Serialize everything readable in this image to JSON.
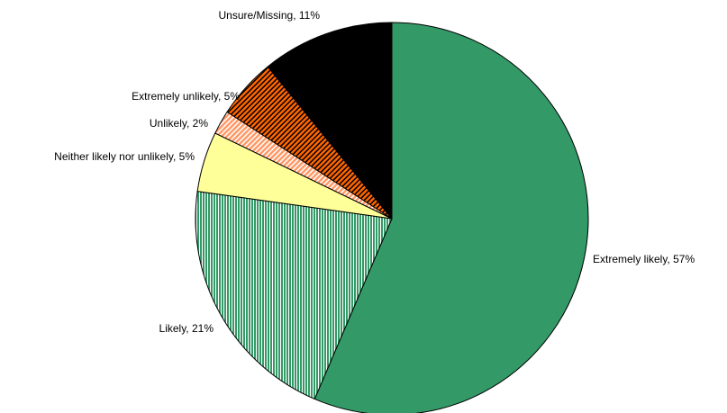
{
  "chart_data": {
    "type": "pie",
    "value_labels": [
      "Extremely likely, 57%",
      "Likely, 21%",
      "Neither likely nor unlikely, 5%",
      "Unlikely, 2%",
      "Extremely unlikely, 5%",
      "Unsure/Missing, 11%"
    ],
    "values": [
      57,
      21,
      5,
      2,
      5,
      11
    ],
    "colors": [
      "#339966",
      "#339966",
      "#ffff99",
      "#ff9966",
      "#ff6600",
      "#000000"
    ],
    "patterns": [
      "solid",
      "vertical",
      "solid",
      "diagonal",
      "diagonal",
      "solid"
    ]
  }
}
